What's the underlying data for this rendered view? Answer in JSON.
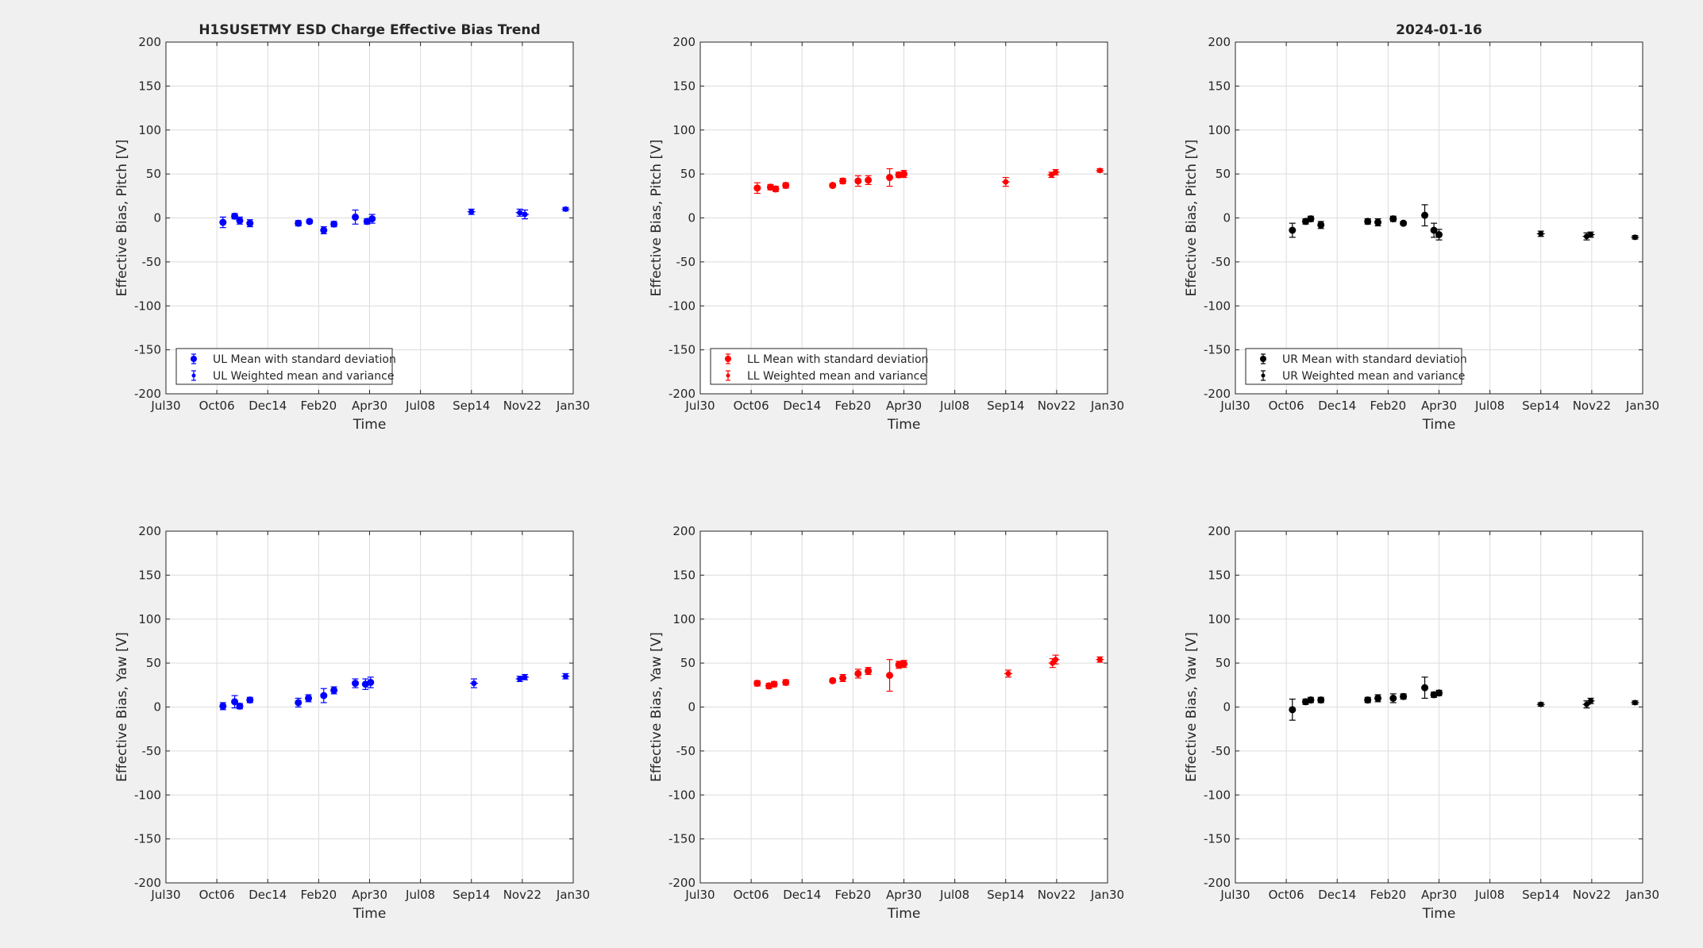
{
  "figure": {
    "background": "#f0f0f0",
    "axes_background": "#ffffff",
    "grid_color": "#dcdcdc"
  },
  "chart_data": [
    {
      "type": "scatter",
      "title": "H1SUSETMY ESD Charge Effective Bias Trend",
      "xlabel": "Time",
      "ylabel": "Effective Bias, Pitch [V]",
      "xticks": [
        "Jul30",
        "Oct06",
        "Dec14",
        "Feb20",
        "Apr30",
        "Jul08",
        "Sep14",
        "Nov22",
        "Jan30"
      ],
      "xlim": [
        0,
        8
      ],
      "yticks": [
        200,
        150,
        100,
        50,
        0,
        -50,
        -100,
        -150,
        -200
      ],
      "ylim": [
        -200,
        200
      ],
      "grid": true,
      "color": "#0000ff",
      "legend_position": "bottom-left",
      "series": [
        {
          "name": "UL Mean with standard deviation",
          "marker": "dot",
          "x": [
            1.12,
            1.35,
            1.45,
            1.65,
            2.6,
            2.82,
            3.1,
            3.3,
            3.72,
            3.95,
            4.05
          ],
          "y": [
            -5,
            2,
            -3,
            -6,
            -6,
            -4,
            -14,
            -7,
            1,
            -4,
            -1
          ],
          "err": [
            6,
            3,
            4,
            4,
            3,
            2,
            4,
            3,
            8,
            3,
            5
          ]
        },
        {
          "name": "UL Weighted mean and variance",
          "marker": "star",
          "x": [
            6.0,
            6.95,
            7.05,
            7.85
          ],
          "y": [
            7,
            6,
            4,
            10
          ],
          "err": [
            3,
            4,
            5,
            2
          ]
        }
      ]
    },
    {
      "type": "scatter",
      "title": "",
      "xlabel": "Time",
      "ylabel": "Effective Bias, Pitch [V]",
      "xticks": [
        "Jul30",
        "Oct06",
        "Dec14",
        "Feb20",
        "Apr30",
        "Jul08",
        "Sep14",
        "Nov22",
        "Jan30"
      ],
      "xlim": [
        0,
        8
      ],
      "yticks": [
        200,
        150,
        100,
        50,
        0,
        -50,
        -100,
        -150,
        -200
      ],
      "ylim": [
        -200,
        200
      ],
      "grid": true,
      "color": "#ff0000",
      "legend_position": "bottom-left",
      "series": [
        {
          "name": "LL Mean with standard deviation",
          "marker": "dot",
          "x": [
            1.12,
            1.38,
            1.48,
            1.68,
            2.6,
            2.8,
            3.1,
            3.3,
            3.72,
            3.9,
            4.0
          ],
          "y": [
            34,
            35,
            33,
            37,
            37,
            42,
            42,
            43,
            46,
            49,
            50
          ],
          "err": [
            6,
            3,
            3,
            3,
            2,
            3,
            6,
            5,
            10,
            3,
            4
          ]
        },
        {
          "name": "LL Weighted mean and variance",
          "marker": "star",
          "x": [
            6.0,
            6.9,
            6.98,
            7.85
          ],
          "y": [
            41,
            49,
            52,
            54
          ],
          "err": [
            5,
            3,
            3,
            2
          ]
        }
      ]
    },
    {
      "type": "scatter",
      "title": "2024-01-16",
      "xlabel": "Time",
      "ylabel": "Effective Bias, Pitch [V]",
      "xticks": [
        "Jul30",
        "Oct06",
        "Dec14",
        "Feb20",
        "Apr30",
        "Jul08",
        "Sep14",
        "Nov22",
        "Jan30"
      ],
      "xlim": [
        0,
        8
      ],
      "yticks": [
        200,
        150,
        100,
        50,
        0,
        -50,
        -100,
        -150,
        -200
      ],
      "ylim": [
        -200,
        200
      ],
      "grid": true,
      "color": "#000000",
      "legend_position": "bottom-left",
      "series": [
        {
          "name": "UR Mean with standard deviation",
          "marker": "dot",
          "x": [
            1.12,
            1.38,
            1.48,
            1.68,
            2.6,
            2.8,
            3.1,
            3.3,
            3.72,
            3.9,
            4.0
          ],
          "y": [
            -14,
            -4,
            -1,
            -8,
            -4,
            -5,
            -1,
            -6,
            3,
            -14,
            -19
          ],
          "err": [
            8,
            3,
            3,
            4,
            3,
            4,
            3,
            2,
            12,
            8,
            6
          ]
        },
        {
          "name": "UR Weighted mean and variance",
          "marker": "star",
          "x": [
            6.0,
            6.9,
            6.98,
            7.85
          ],
          "y": [
            -18,
            -21,
            -19,
            -22
          ],
          "err": [
            3,
            4,
            3,
            2
          ]
        }
      ]
    },
    {
      "type": "scatter",
      "title": "",
      "xlabel": "Time",
      "ylabel": "Effective Bias, Yaw [V]",
      "xticks": [
        "Jul30",
        "Oct06",
        "Dec14",
        "Feb20",
        "Apr30",
        "Jul08",
        "Sep14",
        "Nov22",
        "Jan30"
      ],
      "xlim": [
        0,
        8
      ],
      "yticks": [
        200,
        150,
        100,
        50,
        0,
        -50,
        -100,
        -150,
        -200
      ],
      "ylim": [
        -200,
        200
      ],
      "grid": true,
      "color": "#0000ff",
      "legend_position": "",
      "series": [
        {
          "name": "",
          "marker": "dot",
          "x": [
            1.12,
            1.35,
            1.45,
            1.65,
            2.6,
            2.8,
            3.1,
            3.3,
            3.72,
            3.92,
            4.02
          ],
          "y": [
            1,
            6,
            1,
            8,
            5,
            10,
            13,
            19,
            27,
            26,
            28
          ],
          "err": [
            4,
            7,
            3,
            3,
            5,
            4,
            8,
            4,
            5,
            6,
            6
          ]
        },
        {
          "name": "",
          "marker": "star",
          "x": [
            6.05,
            6.95,
            7.05,
            7.85
          ],
          "y": [
            27,
            32,
            34,
            35
          ],
          "err": [
            5,
            3,
            3,
            3
          ]
        }
      ]
    },
    {
      "type": "scatter",
      "title": "",
      "xlabel": "Time",
      "ylabel": "Effective Bias, Yaw [V]",
      "xticks": [
        "Jul30",
        "Oct06",
        "Dec14",
        "Feb20",
        "Apr30",
        "Jul08",
        "Sep14",
        "Nov22",
        "Jan30"
      ],
      "xlim": [
        0,
        8
      ],
      "yticks": [
        200,
        150,
        100,
        50,
        0,
        -50,
        -100,
        -150,
        -200
      ],
      "ylim": [
        -200,
        200
      ],
      "grid": true,
      "color": "#ff0000",
      "legend_position": "",
      "series": [
        {
          "name": "",
          "marker": "dot",
          "x": [
            1.12,
            1.35,
            1.45,
            1.68,
            2.6,
            2.8,
            3.1,
            3.3,
            3.72,
            3.9,
            4.0
          ],
          "y": [
            27,
            24,
            26,
            28,
            30,
            33,
            38,
            41,
            36,
            48,
            49
          ],
          "err": [
            3,
            3,
            3,
            3,
            2,
            4,
            5,
            4,
            18,
            4,
            4
          ]
        },
        {
          "name": "",
          "marker": "star",
          "x": [
            6.05,
            6.92,
            6.98,
            7.85
          ],
          "y": [
            38,
            50,
            54,
            54
          ],
          "err": [
            4,
            5,
            5,
            3
          ]
        }
      ]
    },
    {
      "type": "scatter",
      "title": "",
      "xlabel": "Time",
      "ylabel": "Effective Bias, Yaw [V]",
      "xticks": [
        "Jul30",
        "Oct06",
        "Dec14",
        "Feb20",
        "Apr30",
        "Jul08",
        "Sep14",
        "Nov22",
        "Jan30"
      ],
      "xlim": [
        0,
        8
      ],
      "yticks": [
        200,
        150,
        100,
        50,
        0,
        -50,
        -100,
        -150,
        -200
      ],
      "ylim": [
        -200,
        200
      ],
      "grid": true,
      "color": "#000000",
      "legend_position": "",
      "series": [
        {
          "name": "",
          "marker": "dot",
          "x": [
            1.12,
            1.38,
            1.48,
            1.68,
            2.6,
            2.8,
            3.1,
            3.3,
            3.72,
            3.9,
            4.0
          ],
          "y": [
            -3,
            6,
            8,
            8,
            8,
            10,
            10,
            12,
            22,
            14,
            16
          ],
          "err": [
            12,
            3,
            3,
            3,
            3,
            4,
            5,
            3,
            12,
            3,
            3
          ]
        },
        {
          "name": "",
          "marker": "star",
          "x": [
            6.0,
            6.9,
            6.98,
            7.85
          ],
          "y": [
            3,
            3,
            7,
            5
          ],
          "err": [
            2,
            4,
            3,
            2
          ]
        }
      ]
    }
  ]
}
